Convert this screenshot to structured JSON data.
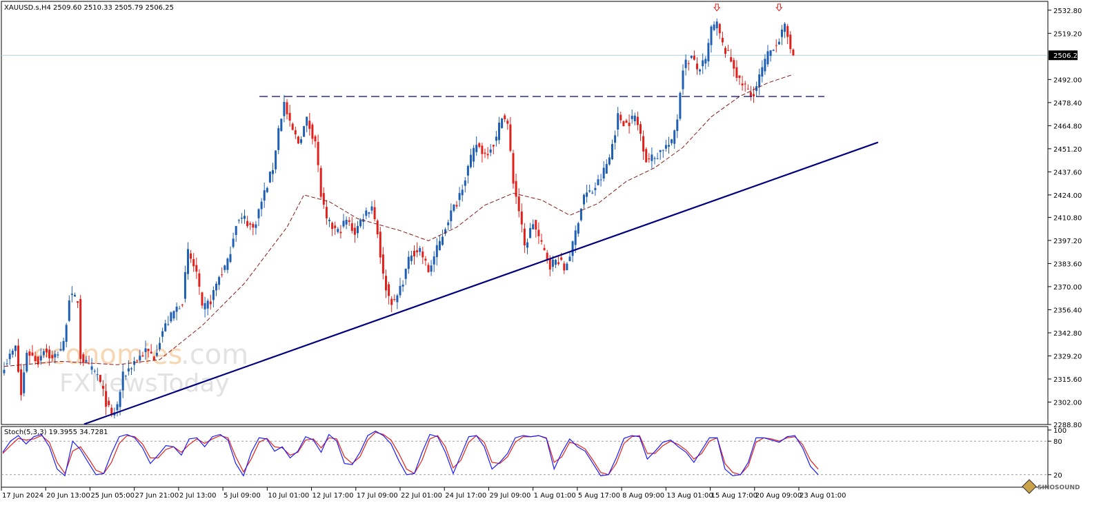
{
  "symbol_header": "XAUUSD.s,H4  2509.60 2510.33 2505.79 2506.25",
  "stoch_header": "Stoch(5,3,3) 19.3955 34.7281",
  "watermark": {
    "brand_a": "economies",
    "brand_b": ".com",
    "brand_c": "FXNewsToday"
  },
  "corner_logo": "SINOSOUND",
  "colors": {
    "bull": "#1f5fb3",
    "bear": "#e0201b",
    "ma": "#8b1a1a",
    "trendline": "#000080",
    "resistance": "#000080",
    "price_line": "#a9d6e5",
    "stoch_main": "#1a1aff",
    "stoch_signal": "#e0201b",
    "arrow": "#e0201b"
  },
  "chart_data": [
    {
      "type": "candlestick",
      "symbol": "XAUUSD.s",
      "timeframe": "H4",
      "ohlc_last": {
        "open": 2509.6,
        "high": 2510.33,
        "low": 2505.79,
        "close": 2506.25
      },
      "current_price_label": "2506.25",
      "y_ticks": [
        "2532.80",
        "2519.20",
        "2506.25",
        "2492.00",
        "2478.40",
        "2464.80",
        "2451.20",
        "2437.60",
        "2424.00",
        "2410.80",
        "2397.20",
        "2383.60",
        "2370.00",
        "2356.40",
        "2342.80",
        "2329.20",
        "2315.60",
        "2302.00",
        "2288.80"
      ],
      "ylim": [
        2288.8,
        2538
      ],
      "x_ticks": [
        "17 Jun 2024",
        "20 Jun 13:00",
        "25 Jun 05:00",
        "27 Jun 21:00",
        "2 Jul 13:00",
        "5 Jul 09:00",
        "10 Jul 01:00",
        "12 Jul 17:00",
        "17 Jul 09:00",
        "22 Jul 01:00",
        "24 Jul 17:00",
        "29 Jul 09:00",
        "1 Aug 01:00",
        "5 Aug 17:00",
        "8 Aug 09:00",
        "13 Aug 01:00",
        "15 Aug 17:00",
        "20 Aug 09:00",
        "23 Aug 01:00"
      ],
      "close_path": [
        [
          0,
          2324
        ],
        [
          4,
          2334
        ],
        [
          6,
          2306
        ],
        [
          8,
          2332
        ],
        [
          12,
          2326
        ],
        [
          14,
          2334
        ],
        [
          17,
          2327
        ],
        [
          21,
          2336
        ],
        [
          23,
          2364
        ],
        [
          26,
          2362
        ],
        [
          27,
          2329
        ],
        [
          30,
          2322
        ],
        [
          33,
          2318
        ],
        [
          36,
          2302
        ],
        [
          38,
          2293
        ],
        [
          40,
          2300
        ],
        [
          42,
          2317
        ],
        [
          46,
          2326
        ],
        [
          50,
          2332
        ],
        [
          53,
          2329
        ],
        [
          56,
          2344
        ],
        [
          60,
          2355
        ],
        [
          63,
          2362
        ],
        [
          65,
          2390
        ],
        [
          68,
          2378
        ],
        [
          70,
          2356
        ],
        [
          73,
          2362
        ],
        [
          76,
          2376
        ],
        [
          79,
          2384
        ],
        [
          82,
          2408
        ],
        [
          85,
          2410
        ],
        [
          88,
          2404
        ],
        [
          91,
          2420
        ],
        [
          95,
          2440
        ],
        [
          97,
          2463
        ],
        [
          99,
          2478
        ],
        [
          101,
          2465
        ],
        [
          104,
          2455
        ],
        [
          107,
          2468
        ],
        [
          110,
          2456
        ],
        [
          112,
          2424
        ],
        [
          114,
          2408
        ],
        [
          118,
          2402
        ],
        [
          121,
          2409
        ],
        [
          124,
          2402
        ],
        [
          127,
          2412
        ],
        [
          130,
          2418
        ],
        [
          132,
          2402
        ],
        [
          134,
          2376
        ],
        [
          136,
          2364
        ],
        [
          138,
          2360
        ],
        [
          141,
          2374
        ],
        [
          144,
          2390
        ],
        [
          147,
          2392
        ],
        [
          150,
          2379
        ],
        [
          154,
          2396
        ],
        [
          157,
          2410
        ],
        [
          160,
          2420
        ],
        [
          164,
          2440
        ],
        [
          167,
          2454
        ],
        [
          170,
          2448
        ],
        [
          174,
          2457
        ],
        [
          176,
          2472
        ],
        [
          178,
          2465
        ],
        [
          180,
          2432
        ],
        [
          182,
          2415
        ],
        [
          184,
          2393
        ],
        [
          187,
          2408
        ],
        [
          190,
          2394
        ],
        [
          193,
          2383
        ],
        [
          196,
          2386
        ],
        [
          198,
          2380
        ],
        [
          201,
          2394
        ],
        [
          203,
          2410
        ],
        [
          205,
          2424
        ],
        [
          208,
          2426
        ],
        [
          211,
          2434
        ],
        [
          214,
          2446
        ],
        [
          217,
          2470
        ],
        [
          220,
          2466
        ],
        [
          223,
          2470
        ],
        [
          225,
          2460
        ],
        [
          227,
          2445
        ],
        [
          230,
          2446
        ],
        [
          233,
          2452
        ],
        [
          236,
          2454
        ],
        [
          238,
          2470
        ],
        [
          240,
          2500
        ],
        [
          243,
          2505
        ],
        [
          245,
          2498
        ],
        [
          248,
          2502
        ],
        [
          250,
          2522
        ],
        [
          252,
          2524
        ],
        [
          254,
          2512
        ],
        [
          256,
          2506
        ],
        [
          258,
          2500
        ],
        [
          260,
          2490
        ],
        [
          262,
          2488
        ],
        [
          264,
          2482
        ],
        [
          266,
          2488
        ],
        [
          268,
          2498
        ],
        [
          270,
          2506
        ],
        [
          272,
          2512
        ],
        [
          274,
          2516
        ],
        [
          276,
          2522
        ],
        [
          278,
          2512
        ],
        [
          279,
          2506
        ]
      ],
      "moving_average": [
        [
          0,
          2323
        ],
        [
          20,
          2326
        ],
        [
          40,
          2324
        ],
        [
          55,
          2327
        ],
        [
          70,
          2347
        ],
        [
          85,
          2372
        ],
        [
          100,
          2405
        ],
        [
          106,
          2424
        ],
        [
          115,
          2420
        ],
        [
          125,
          2410
        ],
        [
          140,
          2403
        ],
        [
          150,
          2397
        ],
        [
          160,
          2405
        ],
        [
          170,
          2418
        ],
        [
          180,
          2425
        ],
        [
          190,
          2421
        ],
        [
          200,
          2412
        ],
        [
          210,
          2419
        ],
        [
          220,
          2432
        ],
        [
          230,
          2440
        ],
        [
          240,
          2452
        ],
        [
          250,
          2470
        ],
        [
          260,
          2482
        ],
        [
          270,
          2490
        ],
        [
          279,
          2495
        ]
      ],
      "resistance_level": 2482,
      "trendline": {
        "from": [
          0,
          2289
        ],
        "to": [
          309,
          2455
        ]
      },
      "down_arrows": [
        [
          252,
          2534
        ],
        [
          274,
          2534
        ]
      ]
    },
    {
      "type": "line",
      "name": "Stoch(5,3,3)",
      "ylim": [
        0,
        100
      ],
      "levels": [
        20,
        80
      ],
      "y_ticks": [
        "100",
        "80",
        "20"
      ],
      "main": [
        60,
        80,
        90,
        75,
        88,
        92,
        70,
        30,
        18,
        80,
        65,
        42,
        20,
        22,
        58,
        88,
        92,
        86,
        68,
        40,
        55,
        72,
        70,
        55,
        84,
        86,
        70,
        88,
        92,
        82,
        40,
        18,
        60,
        86,
        84,
        62,
        70,
        50,
        62,
        88,
        82,
        60,
        92,
        80,
        40,
        38,
        60,
        90,
        98,
        90,
        75,
        45,
        20,
        22,
        60,
        92,
        88,
        60,
        22,
        55,
        88,
        90,
        70,
        30,
        42,
        58,
        86,
        90,
        88,
        90,
        85,
        30,
        60,
        84,
        70,
        62,
        40,
        18,
        20,
        50,
        85,
        90,
        88,
        48,
        62,
        78,
        82,
        70,
        60,
        42,
        64,
        86,
        86,
        30,
        18,
        20,
        42,
        86,
        86,
        82,
        78,
        88,
        90,
        68,
        35,
        20
      ],
      "signal": [
        58,
        72,
        85,
        82,
        84,
        90,
        78,
        42,
        22,
        62,
        70,
        50,
        28,
        22,
        42,
        76,
        90,
        88,
        75,
        50,
        50,
        65,
        70,
        60,
        74,
        84,
        76,
        84,
        90,
        86,
        52,
        25,
        48,
        78,
        85,
        70,
        68,
        55,
        60,
        82,
        84,
        68,
        86,
        84,
        52,
        40,
        52,
        82,
        96,
        92,
        82,
        58,
        30,
        22,
        46,
        84,
        90,
        70,
        32,
        46,
        78,
        90,
        78,
        42,
        40,
        52,
        78,
        88,
        88,
        90,
        86,
        42,
        52,
        78,
        74,
        66,
        46,
        24,
        20,
        40,
        76,
        88,
        90,
        58,
        58,
        72,
        80,
        74,
        64,
        48,
        58,
        80,
        86,
        40,
        24,
        20,
        36,
        78,
        86,
        84,
        80,
        86,
        88,
        74,
        46,
        30
      ]
    }
  ]
}
